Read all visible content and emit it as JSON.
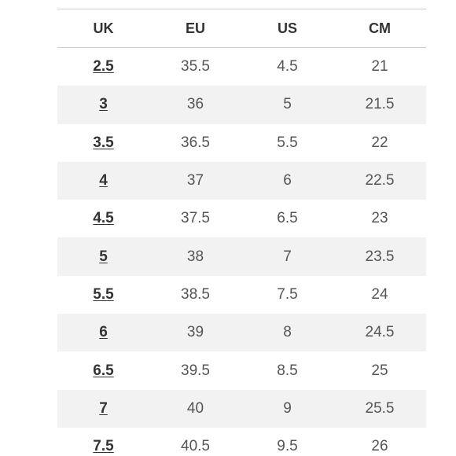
{
  "table": {
    "headers": [
      "UK",
      "EU",
      "US",
      "CM"
    ],
    "rows": [
      [
        "2.5",
        "35.5",
        "4.5",
        "21"
      ],
      [
        "3",
        "36",
        "5",
        "21.5"
      ],
      [
        "3.5",
        "36.5",
        "5.5",
        "22"
      ],
      [
        "4",
        "37",
        "6",
        "22.5"
      ],
      [
        "4.5",
        "37.5",
        "6.5",
        "23"
      ],
      [
        "5",
        "38",
        "7",
        "23.5"
      ],
      [
        "5.5",
        "38.5",
        "7.5",
        "24"
      ],
      [
        "6",
        "39",
        "8",
        "24.5"
      ],
      [
        "6.5",
        "39.5",
        "8.5",
        "25"
      ],
      [
        "7",
        "40",
        "9",
        "25.5"
      ],
      [
        "7.5",
        "40.5",
        "9.5",
        "26"
      ]
    ]
  },
  "colors": {
    "stripe": "#f2f2f2",
    "header_text": "#333333",
    "cell_text": "#555555",
    "border": "#cfcfcf"
  }
}
